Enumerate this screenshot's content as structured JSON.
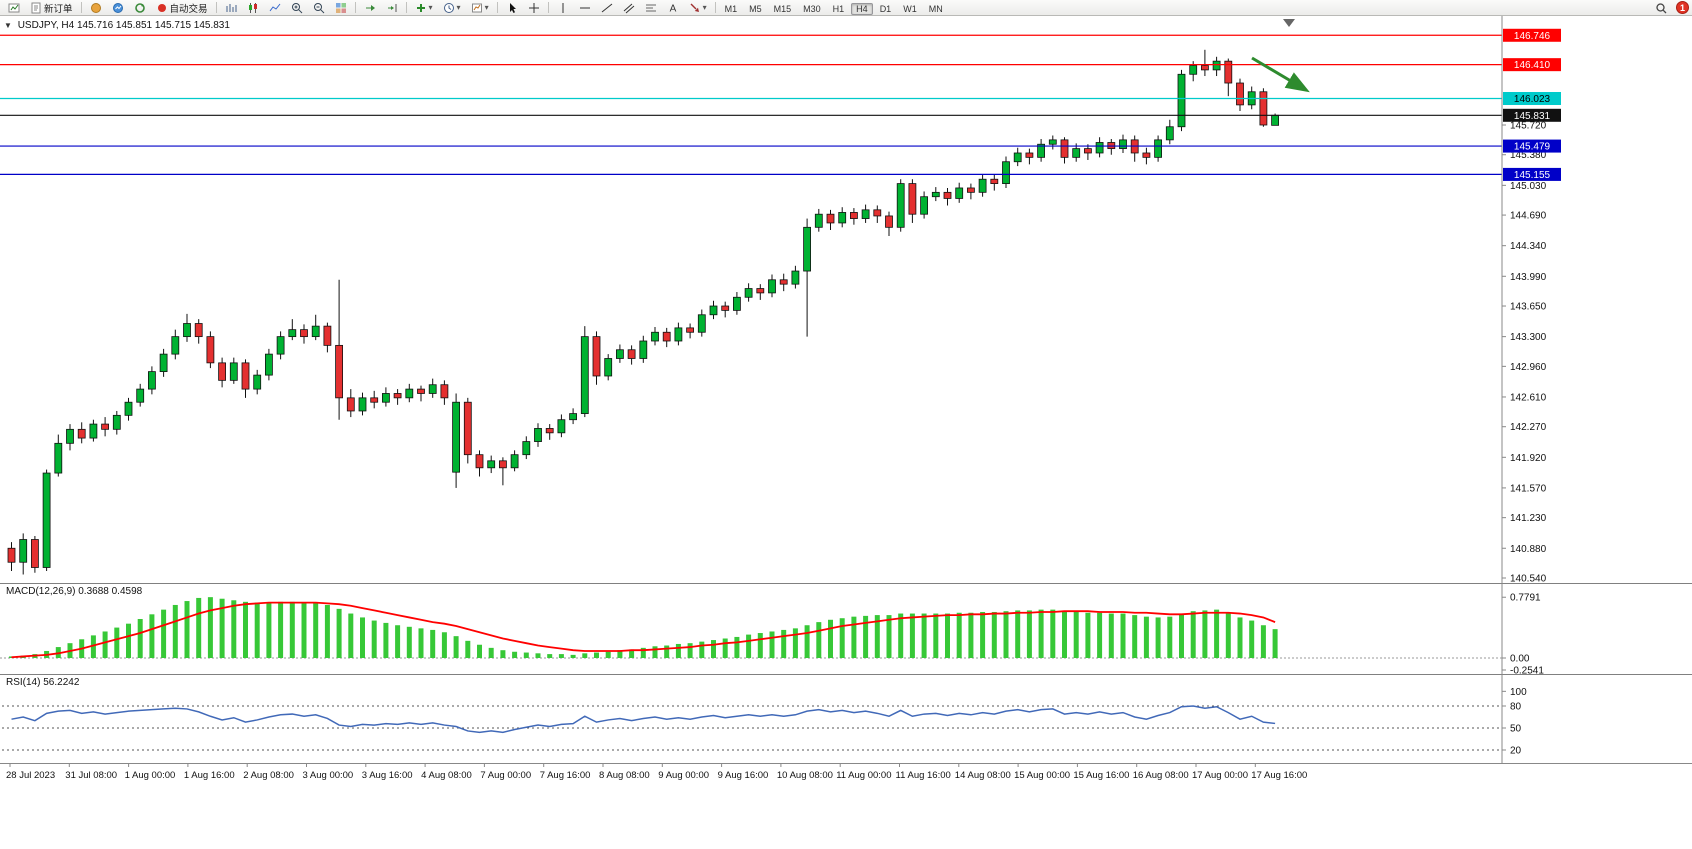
{
  "toolbar": {
    "new_order_label": "新订单",
    "autotrade_label": "自动交易",
    "timeframes": [
      "M1",
      "M5",
      "M15",
      "M30",
      "H1",
      "H4",
      "D1",
      "W1",
      "MN"
    ],
    "active_timeframe": "H4",
    "notification_count": "1",
    "icons": [
      "chart-window-icon",
      "new-order-icon",
      "market-icon",
      "signals-icon",
      "refresh-icon",
      "autotrade-icon",
      "bar-chart-icon",
      "candlestick-chart-icon",
      "line-chart-icon",
      "zoom-in-icon",
      "zoom-out-icon",
      "tile-windows-icon",
      "auto-scroll-icon",
      "chart-shift-icon",
      "indicators-icon",
      "periods-icon",
      "templates-icon",
      "cursor-icon",
      "crosshair-icon",
      "vertical-line-icon",
      "horizontal-line-icon",
      "trendline-icon",
      "channel-icon",
      "fibonacci-icon",
      "text-icon",
      "arrows-icon",
      "search-icon"
    ]
  },
  "chart_data": {
    "type": "candlestick",
    "symbol_period": "USDJPY, H4",
    "ohlc_quote": "145.716 145.851 145.715 145.831",
    "colors": {
      "up": "#00B232",
      "down": "#E43030",
      "wick": "#111111",
      "macd_bar": "#37C837",
      "macd_signal": "#FF0000",
      "rsi_line": "#4169B8",
      "arrow": "#2E8B2E"
    },
    "price_axis_ticks": [
      "145.720",
      "145.380",
      "145.030",
      "144.690",
      "144.340",
      "143.990",
      "143.650",
      "143.300",
      "142.960",
      "142.610",
      "142.270",
      "141.920",
      "141.570",
      "141.230",
      "140.880",
      "140.540"
    ],
    "levels": [
      {
        "price": "146.746",
        "value": 146.746,
        "color": "#FF0000",
        "text": "#FFFFFF"
      },
      {
        "price": "146.410",
        "value": 146.41,
        "color": "#FF0000",
        "text": "#FFFFFF"
      },
      {
        "price": "146.023",
        "value": 146.023,
        "color": "#00CBCB",
        "text": "#000000"
      },
      {
        "price": "145.831",
        "value": 145.831,
        "color": "#111111",
        "text": "#FFFFFF",
        "current": true
      },
      {
        "price": "145.479",
        "value": 145.479,
        "color": "#0000C8",
        "text": "#FFFFFF"
      },
      {
        "price": "145.155",
        "value": 145.155,
        "color": "#0000C8",
        "text": "#FFFFFF"
      }
    ],
    "time_axis": [
      "28 Jul 2023",
      "31 Jul 08:00",
      "1 Aug 00:00",
      "1 Aug 16:00",
      "2 Aug 08:00",
      "3 Aug 00:00",
      "3 Aug 16:00",
      "4 Aug 08:00",
      "7 Aug 00:00",
      "7 Aug 16:00",
      "8 Aug 08:00",
      "9 Aug 00:00",
      "9 Aug 16:00",
      "10 Aug 08:00",
      "11 Aug 00:00",
      "11 Aug 16:00",
      "14 Aug 08:00",
      "15 Aug 00:00",
      "15 Aug 16:00",
      "16 Aug 08:00",
      "17 Aug 00:00",
      "17 Aug 16:00"
    ],
    "candles": [
      [
        140.88,
        140.95,
        140.62,
        140.72
      ],
      [
        140.72,
        141.05,
        140.58,
        140.98
      ],
      [
        140.98,
        141.02,
        140.6,
        140.66
      ],
      [
        140.66,
        141.78,
        140.62,
        141.74
      ],
      [
        141.74,
        142.18,
        141.7,
        142.08
      ],
      [
        142.08,
        142.3,
        142.0,
        142.24
      ],
      [
        142.24,
        142.32,
        142.08,
        142.14
      ],
      [
        142.14,
        142.35,
        142.1,
        142.3
      ],
      [
        142.3,
        142.38,
        142.16,
        142.24
      ],
      [
        142.24,
        142.45,
        142.18,
        142.4
      ],
      [
        142.4,
        142.6,
        142.34,
        142.55
      ],
      [
        142.55,
        142.76,
        142.5,
        142.7
      ],
      [
        142.7,
        142.96,
        142.64,
        142.9
      ],
      [
        142.9,
        143.16,
        142.84,
        143.1
      ],
      [
        143.1,
        143.38,
        143.04,
        143.3
      ],
      [
        143.3,
        143.56,
        143.24,
        143.45
      ],
      [
        143.45,
        143.5,
        143.22,
        143.3
      ],
      [
        143.3,
        143.36,
        142.94,
        143.0
      ],
      [
        143.0,
        143.06,
        142.72,
        142.8
      ],
      [
        142.8,
        143.06,
        142.76,
        143.0
      ],
      [
        143.0,
        143.04,
        142.6,
        142.7
      ],
      [
        142.7,
        142.92,
        142.64,
        142.86
      ],
      [
        142.86,
        143.16,
        142.8,
        143.1
      ],
      [
        143.1,
        143.36,
        143.04,
        143.3
      ],
      [
        143.3,
        143.5,
        143.26,
        143.38
      ],
      [
        143.38,
        143.44,
        143.22,
        143.3
      ],
      [
        143.3,
        143.55,
        143.26,
        143.42
      ],
      [
        143.42,
        143.46,
        143.12,
        143.2
      ],
      [
        143.2,
        143.95,
        142.35,
        142.6
      ],
      [
        142.6,
        142.7,
        142.38,
        142.45
      ],
      [
        142.45,
        142.66,
        142.4,
        142.6
      ],
      [
        142.6,
        142.68,
        142.48,
        142.55
      ],
      [
        142.55,
        142.72,
        142.5,
        142.65
      ],
      [
        142.65,
        142.7,
        142.52,
        142.6
      ],
      [
        142.6,
        142.76,
        142.55,
        142.7
      ],
      [
        142.7,
        142.74,
        142.56,
        142.65
      ],
      [
        142.65,
        142.82,
        142.6,
        142.75
      ],
      [
        142.75,
        142.8,
        142.52,
        142.6
      ],
      [
        141.75,
        142.65,
        141.57,
        142.55
      ],
      [
        142.55,
        142.6,
        141.85,
        141.95
      ],
      [
        141.95,
        142.0,
        141.7,
        141.8
      ],
      [
        141.8,
        141.94,
        141.74,
        141.88
      ],
      [
        141.88,
        141.92,
        141.6,
        141.8
      ],
      [
        141.8,
        142.0,
        141.76,
        141.95
      ],
      [
        141.95,
        142.16,
        141.9,
        142.1
      ],
      [
        142.1,
        142.31,
        142.04,
        142.25
      ],
      [
        142.25,
        142.3,
        142.12,
        142.2
      ],
      [
        142.2,
        142.41,
        142.15,
        142.35
      ],
      [
        142.35,
        142.48,
        142.3,
        142.42
      ],
      [
        142.42,
        143.42,
        142.38,
        143.3
      ],
      [
        143.3,
        143.36,
        142.75,
        142.85
      ],
      [
        142.85,
        143.1,
        142.8,
        143.05
      ],
      [
        143.05,
        143.21,
        143.0,
        143.15
      ],
      [
        143.15,
        143.2,
        142.98,
        143.05
      ],
      [
        143.05,
        143.31,
        143.0,
        143.25
      ],
      [
        143.25,
        143.41,
        143.2,
        143.35
      ],
      [
        143.35,
        143.4,
        143.18,
        143.25
      ],
      [
        143.25,
        143.46,
        143.2,
        143.4
      ],
      [
        143.4,
        143.45,
        143.28,
        143.35
      ],
      [
        143.35,
        143.61,
        143.3,
        143.55
      ],
      [
        143.55,
        143.71,
        143.5,
        143.65
      ],
      [
        143.65,
        143.7,
        143.52,
        143.6
      ],
      [
        143.6,
        143.81,
        143.55,
        143.75
      ],
      [
        143.75,
        143.91,
        143.7,
        143.85
      ],
      [
        143.85,
        143.9,
        143.72,
        143.8
      ],
      [
        143.8,
        144.01,
        143.75,
        143.95
      ],
      [
        143.95,
        144.02,
        143.82,
        143.9
      ],
      [
        143.9,
        144.11,
        143.85,
        144.05
      ],
      [
        144.05,
        144.65,
        143.3,
        144.55
      ],
      [
        144.55,
        144.76,
        144.5,
        144.7
      ],
      [
        144.7,
        144.75,
        144.52,
        144.6
      ],
      [
        144.6,
        144.78,
        144.55,
        144.72
      ],
      [
        144.72,
        144.77,
        144.58,
        144.65
      ],
      [
        144.65,
        144.81,
        144.6,
        144.75
      ],
      [
        144.75,
        144.8,
        144.6,
        144.68
      ],
      [
        144.68,
        144.73,
        144.45,
        144.55
      ],
      [
        144.55,
        145.1,
        144.5,
        145.05
      ],
      [
        145.05,
        145.1,
        144.6,
        144.7
      ],
      [
        144.7,
        144.96,
        144.65,
        144.9
      ],
      [
        144.9,
        145.01,
        144.85,
        144.95
      ],
      [
        144.95,
        145.0,
        144.8,
        144.88
      ],
      [
        144.88,
        145.06,
        144.83,
        145.0
      ],
      [
        145.0,
        145.05,
        144.87,
        144.95
      ],
      [
        144.95,
        145.16,
        144.9,
        145.1
      ],
      [
        145.1,
        145.15,
        144.97,
        145.05
      ],
      [
        145.05,
        145.36,
        145.0,
        145.3
      ],
      [
        145.3,
        145.46,
        145.25,
        145.4
      ],
      [
        145.4,
        145.45,
        145.27,
        145.35
      ],
      [
        145.35,
        145.56,
        145.3,
        145.5
      ],
      [
        145.5,
        145.6,
        145.44,
        145.55
      ],
      [
        145.55,
        145.58,
        145.28,
        145.35
      ],
      [
        145.35,
        145.51,
        145.3,
        145.45
      ],
      [
        145.45,
        145.5,
        145.32,
        145.4
      ],
      [
        145.4,
        145.58,
        145.35,
        145.52
      ],
      [
        145.52,
        145.56,
        145.38,
        145.45
      ],
      [
        145.45,
        145.61,
        145.4,
        145.55
      ],
      [
        145.55,
        145.6,
        145.3,
        145.4
      ],
      [
        145.4,
        145.46,
        145.27,
        145.35
      ],
      [
        145.35,
        145.6,
        145.3,
        145.55
      ],
      [
        145.55,
        145.78,
        145.5,
        145.7
      ],
      [
        145.7,
        146.35,
        145.65,
        146.3
      ],
      [
        146.3,
        146.45,
        146.22,
        146.4
      ],
      [
        146.4,
        146.58,
        146.28,
        146.35
      ],
      [
        146.35,
        146.5,
        146.28,
        146.45
      ],
      [
        146.45,
        146.48,
        146.05,
        146.2
      ],
      [
        146.2,
        146.25,
        145.88,
        145.95
      ],
      [
        145.95,
        146.16,
        145.9,
        146.1
      ],
      [
        146.1,
        146.14,
        145.7,
        145.72
      ],
      [
        145.716,
        145.851,
        145.715,
        145.831
      ]
    ],
    "macd": {
      "label": "MACD(12,26,9)",
      "values": "0.3688 0.4598",
      "axis_max": "0.7791",
      "axis_zero": "0.00",
      "axis_min": "-0.2541",
      "histogram": [
        0.02,
        0.03,
        0.05,
        0.09,
        0.14,
        0.19,
        0.24,
        0.29,
        0.34,
        0.39,
        0.44,
        0.5,
        0.56,
        0.62,
        0.68,
        0.73,
        0.77,
        0.78,
        0.76,
        0.74,
        0.72,
        0.71,
        0.71,
        0.72,
        0.72,
        0.71,
        0.7,
        0.68,
        0.63,
        0.57,
        0.52,
        0.48,
        0.45,
        0.42,
        0.4,
        0.38,
        0.36,
        0.33,
        0.28,
        0.22,
        0.17,
        0.13,
        0.1,
        0.08,
        0.07,
        0.06,
        0.05,
        0.05,
        0.04,
        0.06,
        0.07,
        0.08,
        0.1,
        0.11,
        0.13,
        0.15,
        0.16,
        0.18,
        0.19,
        0.21,
        0.23,
        0.25,
        0.27,
        0.3,
        0.32,
        0.34,
        0.36,
        0.38,
        0.42,
        0.46,
        0.49,
        0.51,
        0.53,
        0.54,
        0.55,
        0.55,
        0.57,
        0.57,
        0.57,
        0.57,
        0.57,
        0.58,
        0.58,
        0.59,
        0.59,
        0.6,
        0.61,
        0.61,
        0.62,
        0.62,
        0.6,
        0.59,
        0.58,
        0.58,
        0.57,
        0.57,
        0.55,
        0.53,
        0.52,
        0.53,
        0.57,
        0.6,
        0.61,
        0.62,
        0.58,
        0.52,
        0.48,
        0.42,
        0.37
      ],
      "signal": [
        0.01,
        0.02,
        0.03,
        0.04,
        0.06,
        0.09,
        0.12,
        0.16,
        0.2,
        0.24,
        0.28,
        0.32,
        0.37,
        0.42,
        0.47,
        0.52,
        0.57,
        0.61,
        0.64,
        0.67,
        0.69,
        0.7,
        0.71,
        0.71,
        0.71,
        0.71,
        0.71,
        0.7,
        0.69,
        0.67,
        0.64,
        0.61,
        0.58,
        0.55,
        0.52,
        0.49,
        0.46,
        0.44,
        0.41,
        0.37,
        0.33,
        0.29,
        0.25,
        0.22,
        0.19,
        0.16,
        0.14,
        0.12,
        0.1,
        0.09,
        0.09,
        0.09,
        0.09,
        0.1,
        0.1,
        0.11,
        0.12,
        0.13,
        0.14,
        0.16,
        0.17,
        0.19,
        0.2,
        0.22,
        0.24,
        0.26,
        0.28,
        0.3,
        0.32,
        0.35,
        0.38,
        0.41,
        0.43,
        0.45,
        0.47,
        0.49,
        0.51,
        0.52,
        0.53,
        0.54,
        0.55,
        0.55,
        0.56,
        0.56,
        0.57,
        0.57,
        0.58,
        0.58,
        0.59,
        0.59,
        0.6,
        0.6,
        0.6,
        0.59,
        0.59,
        0.59,
        0.58,
        0.58,
        0.57,
        0.56,
        0.56,
        0.57,
        0.58,
        0.58,
        0.58,
        0.57,
        0.55,
        0.52,
        0.46
      ]
    },
    "rsi": {
      "label": "RSI(14)",
      "value": "56.2242",
      "axis": [
        "100",
        "80",
        "50",
        "20"
      ],
      "level_lines": [
        80,
        50,
        20
      ],
      "values": [
        62,
        65,
        60,
        70,
        73,
        74,
        70,
        72,
        69,
        71,
        73,
        74,
        75,
        76,
        77,
        76,
        72,
        66,
        61,
        64,
        58,
        61,
        65,
        68,
        69,
        66,
        68,
        63,
        54,
        52,
        55,
        54,
        56,
        55,
        57,
        55,
        57,
        54,
        52,
        46,
        44,
        46,
        44,
        48,
        51,
        54,
        52,
        55,
        56,
        66,
        58,
        61,
        63,
        60,
        63,
        65,
        62,
        64,
        62,
        65,
        67,
        64,
        66,
        68,
        66,
        68,
        66,
        68,
        73,
        75,
        72,
        74,
        71,
        73,
        70,
        66,
        74,
        66,
        69,
        70,
        67,
        70,
        68,
        71,
        69,
        73,
        75,
        72,
        75,
        76,
        69,
        71,
        69,
        72,
        69,
        71,
        65,
        62,
        67,
        71,
        79,
        80,
        77,
        79,
        71,
        62,
        66,
        58,
        56.22
      ]
    }
  }
}
